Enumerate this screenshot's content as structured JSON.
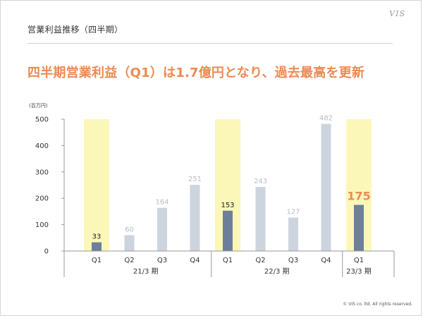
{
  "header": {
    "title": "営業利益推移（四半期）",
    "logo": "VIS"
  },
  "headline": "四半期営業利益（Q1）は1.7億円となり、過去最高を更新",
  "footer": {
    "copyright": "© VIS co. ltd. All rights reserved."
  },
  "chart_data": {
    "type": "bar",
    "unit_label": "(百万円)",
    "ylim": [
      0,
      500
    ],
    "yticks": [
      0,
      100,
      200,
      300,
      400,
      500
    ],
    "categories": [
      "Q1",
      "Q2",
      "Q3",
      "Q4",
      "Q1",
      "Q2",
      "Q3",
      "Q4",
      "Q1"
    ],
    "groups": [
      {
        "label": "21/3 期",
        "count": 4
      },
      {
        "label": "22/3 期",
        "count": 4
      },
      {
        "label": "23/3 期",
        "count": 1
      }
    ],
    "values": [
      33,
      60,
      164,
      251,
      153,
      243,
      127,
      482,
      175
    ],
    "highlighted": [
      true,
      false,
      false,
      false,
      true,
      false,
      false,
      false,
      true
    ],
    "emphasized_index": 8,
    "colors": {
      "highlight_bar": "#6e7f9c",
      "normal_bar": "#cdd4de",
      "highlight_band": "#fbf7b8",
      "highlight_label": "#222222",
      "normal_label": "#b6bcc6",
      "emphasis_label": "#ec8a52",
      "axis": "#999999",
      "grid": "#e2e2e2"
    }
  }
}
